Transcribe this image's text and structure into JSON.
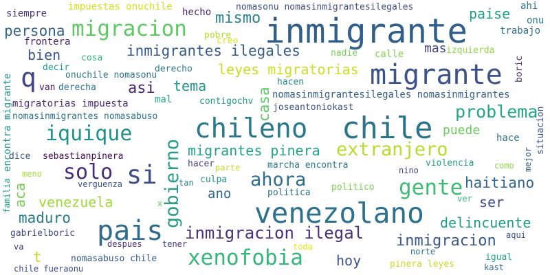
{
  "words": [
    {
      "text": "inmigrante",
      "color": "#2f5f8a",
      "vertical": false
    },
    {
      "text": "chile",
      "color": "#2b748e",
      "vertical": false
    },
    {
      "text": "venezolano",
      "color": "#2c728e",
      "vertical": false
    },
    {
      "text": "migrante",
      "color": "#3b528b",
      "vertical": false
    },
    {
      "text": "chileno",
      "color": "#2a788e",
      "vertical": false
    },
    {
      "text": "pais",
      "color": "#2f6b8e",
      "vertical": false
    },
    {
      "text": "si",
      "color": "#3e4c8a",
      "vertical": false
    },
    {
      "text": "extranjero",
      "color": "#b5de2b",
      "vertical": false
    },
    {
      "text": "migracion",
      "color": "#5ec962",
      "vertical": false
    },
    {
      "text": "gobierno",
      "color": "#2a9d8a",
      "vertical": true
    },
    {
      "text": "iquique",
      "color": "#21918c",
      "vertical": false
    },
    {
      "text": "xenofobia",
      "color": "#35b779",
      "vertical": false
    },
    {
      "text": "gente",
      "color": "#3fbc73",
      "vertical": false
    },
    {
      "text": "q",
      "color": "#414487",
      "vertical": false
    },
    {
      "text": "solo",
      "color": "#472c7a",
      "vertical": false
    },
    {
      "text": "problema",
      "color": "#22a884",
      "vertical": false
    },
    {
      "text": "inmigracion ilegal",
      "color": "#46327e",
      "vertical": false
    },
    {
      "text": "ahora",
      "color": "#2e6e8e",
      "vertical": false
    },
    {
      "text": "inmigrantes ilegales",
      "color": "#365c8d",
      "vertical": false
    },
    {
      "text": "haitiano",
      "color": "#31688e",
      "vertical": false
    },
    {
      "text": "delincuente",
      "color": "#1f9e89",
      "vertical": false
    },
    {
      "text": "inmigracion",
      "color": "#38598c",
      "vertical": false
    },
    {
      "text": "migrantes pinera",
      "color": "#20a386",
      "vertical": false
    },
    {
      "text": "leyes migratorias",
      "color": "#c8e020",
      "vertical": false
    },
    {
      "text": "venezuela",
      "color": "#a0da39",
      "vertical": false
    },
    {
      "text": "mismo",
      "color": "#25848e",
      "vertical": false
    },
    {
      "text": "persona",
      "color": "#33638d",
      "vertical": false
    },
    {
      "text": "maduro",
      "color": "#277f8e",
      "vertical": false
    },
    {
      "text": "casa",
      "color": "#5ec962",
      "vertical": true
    },
    {
      "text": "asi",
      "color": "#482475",
      "vertical": false
    },
    {
      "text": "bien",
      "color": "#39568c",
      "vertical": false
    },
    {
      "text": "paise",
      "color": "#1fa187",
      "vertical": false
    },
    {
      "text": "tema",
      "color": "#1f988b",
      "vertical": false
    },
    {
      "text": "hoy",
      "color": "#3b528b",
      "vertical": false
    },
    {
      "text": "ser",
      "color": "#3e4a89",
      "vertical": false
    },
    {
      "text": "ano",
      "color": "#31688e",
      "vertical": false
    },
    {
      "text": "puede",
      "color": "#6ccd5a",
      "vertical": false
    },
    {
      "text": "mas",
      "color": "#414487",
      "vertical": false
    },
    {
      "text": "aca",
      "color": "#75d054",
      "vertical": true
    },
    {
      "text": "t",
      "color": "#bddf26",
      "vertical": false
    },
    {
      "text": "impuestas onuchile",
      "color": "#d2e21b",
      "vertical": false
    },
    {
      "text": "nomasonu nomasinmigrantesilegales",
      "color": "#3d4d8a",
      "vertical": false
    },
    {
      "text": "siempre",
      "color": "#443983",
      "vertical": false
    },
    {
      "text": "hecho",
      "color": "#482878",
      "vertical": false
    },
    {
      "text": "pobre",
      "color": "#b5de2b",
      "vertical": false
    },
    {
      "text": "creo",
      "color": "#dae319",
      "vertical": false
    },
    {
      "text": "ahi",
      "color": "#2d708e",
      "vertical": false
    },
    {
      "text": "onu",
      "color": "#29798e",
      "vertical": false
    },
    {
      "text": "trabajo",
      "color": "#2c728e",
      "vertical": false
    },
    {
      "text": "frontera",
      "color": "#481f70",
      "vertical": false
    },
    {
      "text": "cosa",
      "color": "#35b779",
      "vertical": false
    },
    {
      "text": "nadie",
      "color": "#73d056",
      "vertical": false
    },
    {
      "text": "calle",
      "color": "#7fd34e",
      "vertical": false
    },
    {
      "text": "izquierda",
      "color": "#93d741",
      "vertical": false
    },
    {
      "text": "boric",
      "color": "#46327e",
      "vertical": true
    },
    {
      "text": "decir",
      "color": "#1e9c89",
      "vertical": false
    },
    {
      "text": "onuchile nomasonu",
      "color": "#2a768e",
      "vertical": false
    },
    {
      "text": "derecho",
      "color": "#297a8e",
      "vertical": false
    },
    {
      "text": "hacen",
      "color": "#24868e",
      "vertical": false
    },
    {
      "text": "van",
      "color": "#481668",
      "vertical": false
    },
    {
      "text": "derecha",
      "color": "#2e6f8e",
      "vertical": false
    },
    {
      "text": "encontra migrante",
      "color": "#1f988b",
      "vertical": true
    },
    {
      "text": "nomasinmigrantesilegales nomasinmigrantes",
      "color": "#355f8d",
      "vertical": false
    },
    {
      "text": "mal",
      "color": "#27ad81",
      "vertical": false
    },
    {
      "text": "contigochv",
      "color": "#1f9a8a",
      "vertical": false
    },
    {
      "text": "joseantoniokast",
      "color": "#3b528b",
      "vertical": false
    },
    {
      "text": "migratorias impuesta",
      "color": "#472d7b",
      "vertical": false
    },
    {
      "text": "nomasinmigrantes nomasabuso",
      "color": "#2c718e",
      "vertical": false
    },
    {
      "text": "situacion",
      "color": "#3b518b",
      "vertical": true
    },
    {
      "text": "hace",
      "color": "#2c728e",
      "vertical": false
    },
    {
      "text": "dice",
      "color": "#3a538b",
      "vertical": false
    },
    {
      "text": "sebastianpinera",
      "color": "#450559",
      "vertical": false
    },
    {
      "text": "hacer",
      "color": "#414487",
      "vertical": false
    },
    {
      "text": "parte",
      "color": "#c0df25",
      "vertical": false
    },
    {
      "text": "marcha encontra",
      "color": "#2a778e",
      "vertical": false
    },
    {
      "text": "violencia",
      "color": "#1fa287",
      "vertical": false
    },
    {
      "text": "como",
      "color": "#8fd744",
      "vertical": false
    },
    {
      "text": "mejor",
      "color": "#34618d",
      "vertical": true
    },
    {
      "text": "nino",
      "color": "#404688",
      "vertical": false
    },
    {
      "text": "meno",
      "color": "#a2da37",
      "vertical": false
    },
    {
      "text": "verguenza",
      "color": "#3a548c",
      "vertical": false
    },
    {
      "text": "tan",
      "color": "#26828e",
      "vertical": false
    },
    {
      "text": "culpa",
      "color": "#1f958b",
      "vertical": false
    },
    {
      "text": "politico",
      "color": "#7cd250",
      "vertical": false
    },
    {
      "text": "politica",
      "color": "#2e6e8e",
      "vertical": false
    },
    {
      "text": "familia",
      "color": "#1fa187",
      "vertical": true
    },
    {
      "text": "x",
      "color": "#67cc5c",
      "vertical": false
    },
    {
      "text": "ver",
      "color": "#35b779",
      "vertical": false
    },
    {
      "text": "gabrielboric",
      "color": "#3e4989",
      "vertical": false
    },
    {
      "text": "tener",
      "color": "#433e85",
      "vertical": false
    },
    {
      "text": "aqui",
      "color": "#3a548c",
      "vertical": false
    },
    {
      "text": "despues",
      "color": "#472f7d",
      "vertical": false
    },
    {
      "text": "va",
      "color": "#46327e",
      "vertical": false
    },
    {
      "text": "toda",
      "color": "#e5e419",
      "vertical": false
    },
    {
      "text": "norte",
      "color": "#2c728e",
      "vertical": false
    },
    {
      "text": "nomasabuso chile",
      "color": "#375a8c",
      "vertical": false
    },
    {
      "text": "igual",
      "color": "#22a884",
      "vertical": false
    },
    {
      "text": "kast",
      "color": "#30698e",
      "vertical": false
    },
    {
      "text": "chile fueraonu",
      "color": "#3e4a89",
      "vertical": false
    },
    {
      "text": "pinera leyes",
      "color": "#c2df23",
      "vertical": false
    }
  ]
}
